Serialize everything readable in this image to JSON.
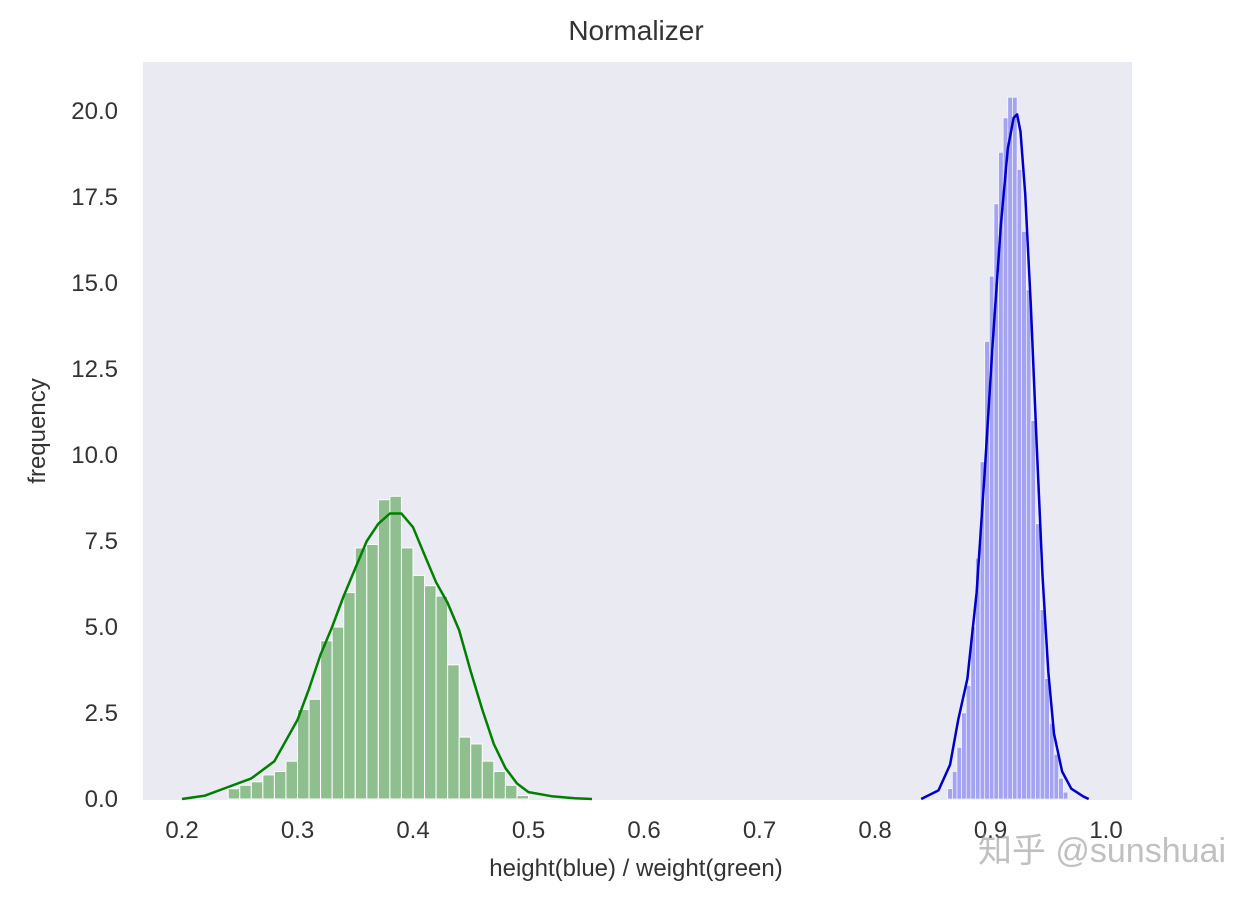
{
  "chart_data": {
    "type": "bar",
    "title": "Normalizer",
    "xlabel": "height(blue) / weight(green)",
    "ylabel": "frequency",
    "xlim": [
      0.165,
      1.03
    ],
    "ylim": [
      0,
      21.5
    ],
    "xticks": [
      "0.2",
      "0.3",
      "0.4",
      "0.5",
      "0.6",
      "0.7",
      "0.8",
      "0.9",
      "1.0"
    ],
    "yticks": [
      "0.0",
      "2.5",
      "5.0",
      "7.5",
      "10.0",
      "12.5",
      "15.0",
      "17.5",
      "20.0"
    ],
    "grid": false,
    "background": "#eaeaf2",
    "series": [
      {
        "color": "#008000",
        "bar_fill": "#8fbf8f",
        "histogram": {
          "bin_edges": [
            0.24,
            0.25,
            0.26,
            0.27,
            0.28,
            0.29,
            0.3,
            0.31,
            0.32,
            0.33,
            0.34,
            0.35,
            0.36,
            0.37,
            0.38,
            0.39,
            0.4,
            0.41,
            0.42,
            0.43,
            0.44,
            0.45,
            0.46,
            0.47,
            0.48,
            0.49,
            0.5
          ],
          "counts": [
            0.3,
            0.4,
            0.5,
            0.7,
            0.8,
            1.1,
            2.6,
            2.9,
            4.6,
            5.0,
            6.0,
            7.3,
            7.4,
            8.7,
            8.8,
            7.3,
            6.5,
            6.2,
            5.9,
            3.9,
            1.8,
            1.6,
            1.1,
            0.8,
            0.4,
            0.1
          ]
        },
        "kde": {
          "x": [
            0.2,
            0.22,
            0.24,
            0.26,
            0.28,
            0.3,
            0.31,
            0.32,
            0.33,
            0.34,
            0.35,
            0.36,
            0.37,
            0.38,
            0.39,
            0.4,
            0.41,
            0.42,
            0.43,
            0.44,
            0.45,
            0.46,
            0.47,
            0.48,
            0.49,
            0.5,
            0.52,
            0.54,
            0.555
          ],
          "y": [
            0.0,
            0.1,
            0.35,
            0.6,
            1.1,
            2.3,
            3.2,
            4.2,
            5.0,
            5.9,
            6.7,
            7.5,
            8.0,
            8.3,
            8.3,
            7.9,
            7.1,
            6.3,
            5.7,
            4.9,
            3.7,
            2.6,
            1.6,
            0.9,
            0.45,
            0.2,
            0.08,
            0.02,
            0.0
          ]
        }
      },
      {
        "color": "#0000cc",
        "bar_fill": "#a3a3f2",
        "histogram": {
          "bin_edges": [
            0.863,
            0.867,
            0.871,
            0.875,
            0.879,
            0.883,
            0.887,
            0.891,
            0.895,
            0.899,
            0.903,
            0.907,
            0.911,
            0.915,
            0.919,
            0.923,
            0.927,
            0.931,
            0.935,
            0.939,
            0.943,
            0.947,
            0.951,
            0.955,
            0.959,
            0.963,
            0.967
          ],
          "counts": [
            0.3,
            0.8,
            1.5,
            2.5,
            3.3,
            5.0,
            7.0,
            9.8,
            13.3,
            15.2,
            17.3,
            18.8,
            19.8,
            20.4,
            20.4,
            18.3,
            16.5,
            14.8,
            11.0,
            8.0,
            5.5,
            3.5,
            2.2,
            1.3,
            0.6,
            0.2
          ]
        },
        "kde": {
          "x": [
            0.84,
            0.855,
            0.865,
            0.872,
            0.88,
            0.888,
            0.895,
            0.902,
            0.909,
            0.915,
            0.92,
            0.923,
            0.926,
            0.93,
            0.935,
            0.94,
            0.945,
            0.95,
            0.955,
            0.962,
            0.97,
            0.98,
            0.985
          ],
          "y": [
            0.0,
            0.25,
            1.0,
            2.3,
            3.5,
            6.0,
            9.5,
            13.3,
            16.7,
            18.9,
            19.8,
            19.9,
            19.4,
            17.6,
            14.3,
            10.3,
            6.5,
            3.7,
            1.9,
            0.8,
            0.3,
            0.08,
            0.0
          ]
        }
      }
    ]
  },
  "watermark": "知乎 @sunshuai"
}
